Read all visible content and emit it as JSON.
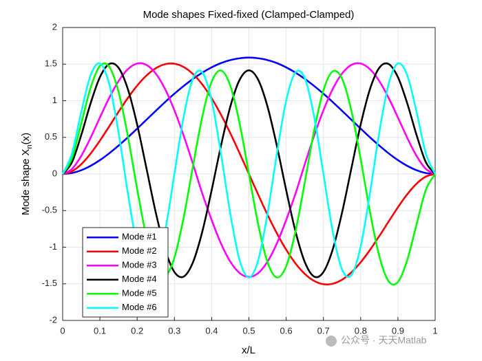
{
  "chart_data": {
    "type": "line",
    "title": "Mode shapes Fixed-fixed (Clamped-Clamped)",
    "x_label": "x/L",
    "y_label": [
      "Mode shape X",
      "n",
      "(x)"
    ],
    "watermark": "公众号 · 天天Matlab",
    "x": [
      0,
      0.025,
      0.05,
      0.075,
      0.1,
      0.125,
      0.15,
      0.175,
      0.2,
      0.225,
      0.25,
      0.275,
      0.3,
      0.325,
      0.35,
      0.375,
      0.4,
      0.425,
      0.45,
      0.475,
      0.5,
      0.525,
      0.55,
      0.575,
      0.6,
      0.625,
      0.65,
      0.675,
      0.7,
      0.725,
      0.75,
      0.775,
      0.8,
      0.825,
      0.85,
      0.875,
      0.9,
      0.925,
      0.95,
      0.975,
      1
    ],
    "series": [
      {
        "name": "Mode #1",
        "color": "#0000ff",
        "values": [
          0,
          0.013,
          0.051,
          0.111,
          0.189,
          0.282,
          0.387,
          0.5,
          0.619,
          0.741,
          0.862,
          0.982,
          1.096,
          1.202,
          1.299,
          1.384,
          1.456,
          1.514,
          1.555,
          1.58,
          1.59,
          1.58,
          1.555,
          1.514,
          1.456,
          1.384,
          1.299,
          1.202,
          1.096,
          0.982,
          0.862,
          0.741,
          0.619,
          0.5,
          0.387,
          0.282,
          0.189,
          0.111,
          0.051,
          0.013,
          0
        ]
      },
      {
        "name": "Mode #2",
        "color": "#ff0000",
        "values": [
          0,
          0.036,
          0.133,
          0.278,
          0.455,
          0.65,
          0.848,
          1.037,
          1.206,
          1.344,
          1.444,
          1.499,
          1.505,
          1.46,
          1.364,
          1.221,
          1.034,
          0.81,
          0.557,
          0.283,
          0,
          -0.283,
          -0.557,
          -0.81,
          -1.034,
          -1.221,
          -1.364,
          -1.46,
          -1.505,
          -1.499,
          -1.444,
          -1.344,
          -1.206,
          -1.037,
          -0.848,
          -0.65,
          -0.455,
          -0.278,
          -0.133,
          -0.036,
          0
        ]
      },
      {
        "name": "Mode #3",
        "color": "#ff00ff",
        "values": [
          0,
          0.069,
          0.247,
          0.494,
          0.771,
          1.039,
          1.268,
          1.43,
          1.508,
          1.489,
          1.371,
          1.159,
          0.869,
          0.521,
          0.134,
          -0.27,
          -0.629,
          -0.949,
          -1.197,
          -1.353,
          -1.406,
          -1.353,
          -1.197,
          -0.949,
          -0.629,
          -0.27,
          0.134,
          0.521,
          0.869,
          1.159,
          1.371,
          1.489,
          1.508,
          1.43,
          1.268,
          1.039,
          0.771,
          0.494,
          0.247,
          0.069,
          0
        ]
      },
      {
        "name": "Mode #4",
        "color": "#000000",
        "values": [
          0,
          0.16,
          0.533,
          0.965,
          1.322,
          1.502,
          1.45,
          1.159,
          0.674,
          0.076,
          -0.528,
          -1.03,
          -1.339,
          -1.401,
          -1.203,
          -0.784,
          -0.22,
          0.385,
          0.919,
          1.285,
          1.415,
          1.285,
          0.919,
          0.385,
          -0.22,
          -0.784,
          -1.203,
          -1.401,
          -1.339,
          -1.03,
          -0.528,
          0.076,
          0.674,
          1.159,
          1.45,
          1.502,
          1.322,
          0.965,
          0.533,
          0.16,
          0
        ]
      },
      {
        "name": "Mode #5",
        "color": "#00ff00",
        "values": [
          0,
          0.216,
          0.69,
          1.176,
          1.475,
          1.465,
          1.122,
          0.518,
          -0.204,
          -0.866,
          -1.301,
          -1.401,
          -1.142,
          -0.591,
          0.112,
          0.786,
          1.26,
          1.413,
          1.206,
          0.691,
          0,
          -0.691,
          -1.206,
          -1.413,
          -1.26,
          -0.786,
          -0.112,
          0.591,
          1.142,
          1.401,
          1.301,
          0.866,
          0.204,
          -0.518,
          -1.122,
          -1.465,
          -1.475,
          -1.176,
          -0.69,
          -0.216,
          0
        ]
      },
      {
        "name": "Mode #6",
        "color": "#00ffff",
        "values": [
          0,
          0.279,
          0.849,
          1.347,
          1.509,
          1.229,
          0.57,
          -0.26,
          -0.991,
          -1.382,
          -1.304,
          -0.784,
          0.001,
          0.786,
          1.307,
          1.387,
          1,
          0.276,
          -0.541,
          -1.176,
          -1.414,
          -1.176,
          -0.541,
          0.276,
          1,
          1.387,
          1.307,
          0.786,
          0.001,
          -0.784,
          -1.304,
          -1.382,
          -0.991,
          -0.26,
          0.57,
          1.229,
          1.509,
          1.347,
          0.849,
          0.279,
          0
        ]
      }
    ],
    "xlim": [
      0,
      1
    ],
    "ylim": [
      -2,
      2
    ],
    "xticks": [
      0,
      0.1,
      0.2,
      0.3,
      0.4,
      0.5,
      0.6,
      0.7,
      0.8,
      0.9,
      1
    ],
    "yticks": [
      -2,
      -1.5,
      -1,
      -0.5,
      0,
      0.5,
      1,
      1.5,
      2
    ],
    "grid": true,
    "legend": "southwest"
  }
}
